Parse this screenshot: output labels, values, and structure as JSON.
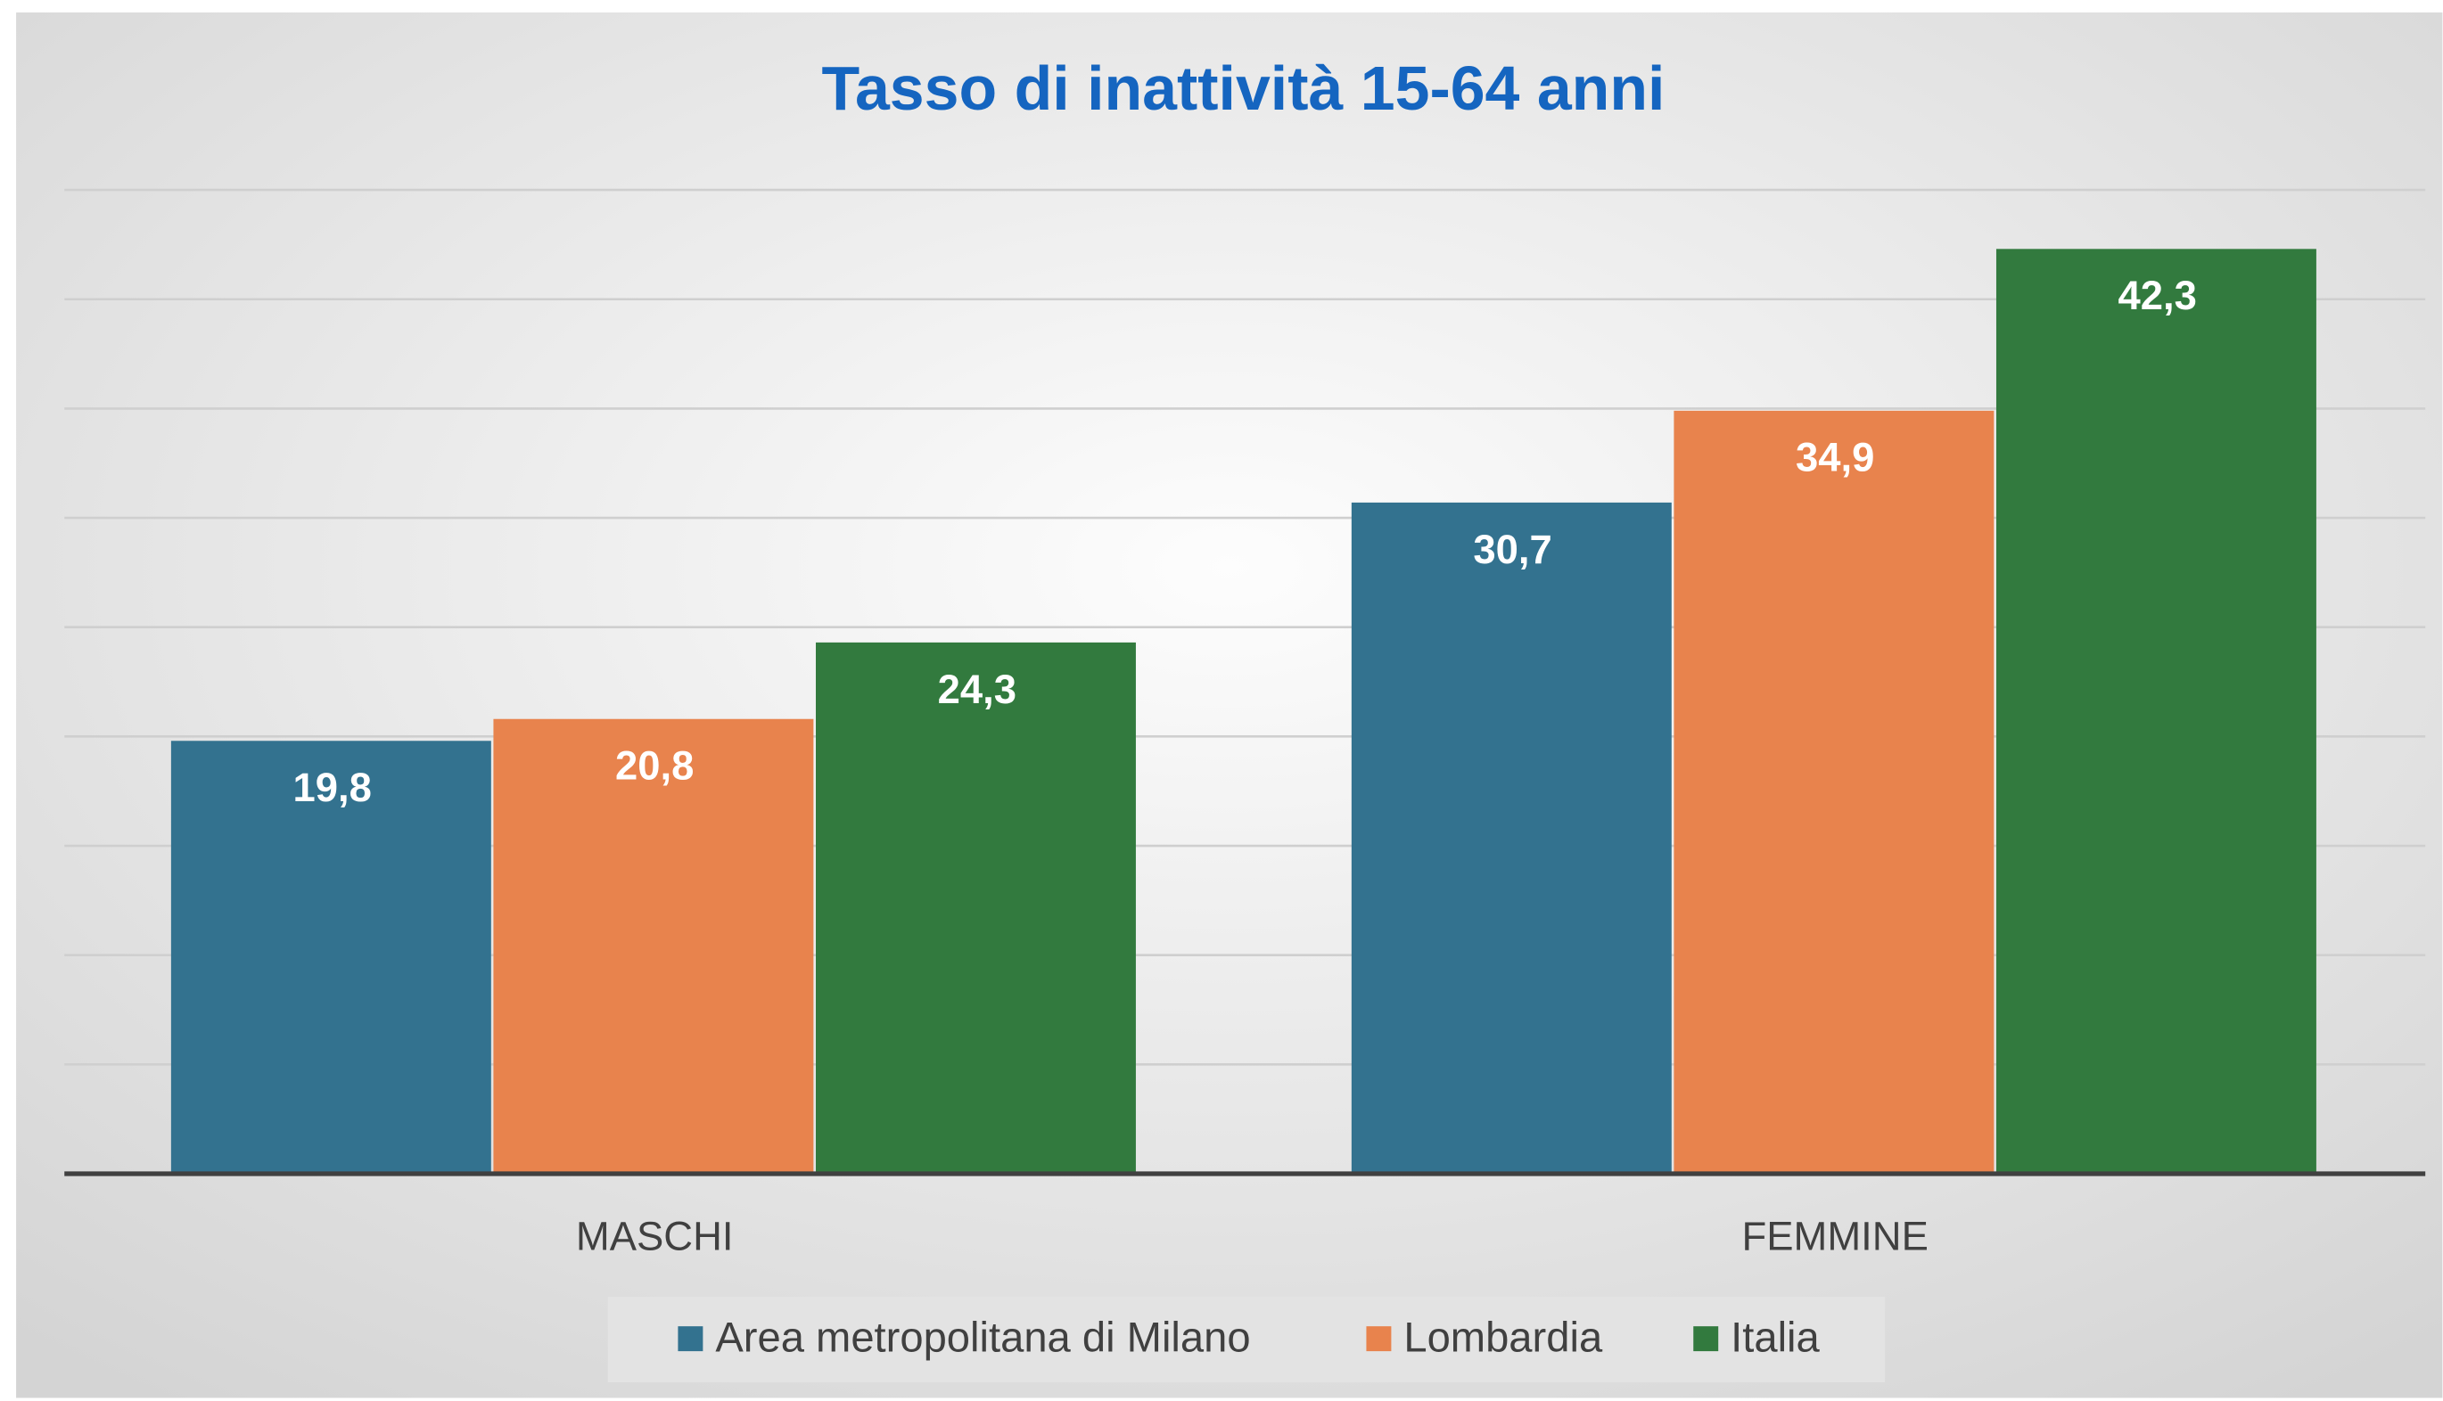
{
  "chart_data": {
    "type": "bar",
    "title": "Tasso di inattività 15-64 anni",
    "categories": [
      "MASCHI",
      "FEMMINE"
    ],
    "series": [
      {
        "name": "Area metropolitana di Milano",
        "color": "#33728f",
        "values": [
          19.8,
          30.7
        ],
        "value_labels": [
          "19,8",
          "30,7"
        ]
      },
      {
        "name": "Lombardia",
        "color": "#e8834d",
        "values": [
          20.8,
          34.9
        ],
        "value_labels": [
          "20,8",
          "34,9"
        ]
      },
      {
        "name": "Italia",
        "color": "#327a3e",
        "values": [
          24.3,
          42.3
        ],
        "value_labels": [
          "24,3",
          "42,3"
        ]
      }
    ],
    "ylim": [
      0,
      45
    ],
    "yticks": [
      0,
      5,
      10,
      15,
      20,
      25,
      30,
      35,
      40,
      45
    ],
    "grid": true,
    "legend": "bottom"
  }
}
